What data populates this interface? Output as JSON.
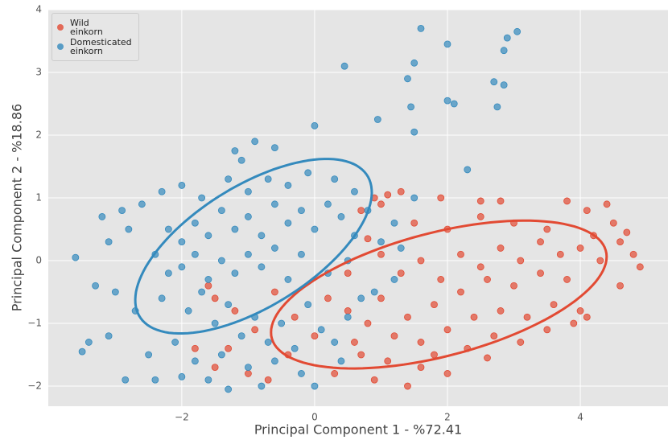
{
  "chart_data": {
    "type": "scatter",
    "xlabel": "Principal Component 1 - %72.41",
    "ylabel": "Principal Component 2 - %18.86",
    "xlim": [
      -4.01,
      5.32
    ],
    "ylim": [
      -2.32,
      4.0
    ],
    "xticks": [
      {
        "value": -2,
        "label": "−2"
      },
      0,
      2,
      4
    ],
    "yticks": [
      {
        "value": -2,
        "label": "−2"
      },
      {
        "value": -1,
        "label": "−1"
      },
      0,
      1,
      2,
      3,
      4
    ],
    "grid": true,
    "legend": "upper left",
    "series": [
      {
        "name": "Wild\neinkorn",
        "color": "#E24A33",
        "x": [
          0.5,
          0.8,
          1.0,
          1.2,
          1.4,
          1.6,
          1.8,
          2.0,
          2.2,
          2.4,
          2.6,
          2.8,
          3.0,
          3.2,
          3.4,
          3.6,
          3.8,
          4.0,
          1.0,
          1.3,
          1.6,
          1.9,
          2.2,
          2.5,
          2.8,
          3.1,
          3.4,
          3.7,
          4.0,
          4.3,
          4.6,
          4.8,
          4.9,
          4.7,
          4.5,
          4.2,
          1.5,
          2.0,
          2.5,
          3.0,
          3.5,
          4.1,
          4.4,
          3.8,
          2.8,
          2.5,
          1.9,
          1.3,
          1.0,
          4.6,
          1.8,
          2.3,
          2.7,
          3.1,
          3.5,
          3.9,
          4.1,
          2.0,
          1.6,
          1.1,
          0.7,
          1.4,
          0.9,
          0.6,
          2.6,
          0.2,
          0.0,
          -0.3,
          -0.6,
          -0.9,
          -1.2,
          -1.5,
          -1.3,
          -1.0,
          -0.7,
          -1.5,
          -1.8,
          -0.4,
          0.3,
          -1.6,
          0.9,
          1.1,
          0.7,
          0.8,
          0.5
        ],
        "values": [
          -0.8,
          -1.0,
          -0.6,
          -1.2,
          -0.9,
          -1.3,
          -0.7,
          -1.1,
          -0.5,
          -0.9,
          -0.3,
          -0.8,
          -0.4,
          -0.9,
          -0.2,
          -0.7,
          -0.3,
          -0.8,
          0.1,
          -0.2,
          0.0,
          -0.3,
          0.1,
          -0.1,
          0.2,
          0.0,
          0.3,
          0.1,
          0.2,
          0.0,
          0.3,
          0.1,
          -0.1,
          0.45,
          0.6,
          0.4,
          0.6,
          0.5,
          0.7,
          0.6,
          0.5,
          0.8,
          0.9,
          0.95,
          0.95,
          0.95,
          1.0,
          1.1,
          0.9,
          -0.4,
          -1.5,
          -1.4,
          -1.2,
          -1.3,
          -1.1,
          -1.0,
          -0.9,
          -1.8,
          -1.7,
          -1.6,
          -1.5,
          -2.0,
          -1.9,
          -1.3,
          -1.55,
          -0.6,
          -1.2,
          -0.9,
          -0.5,
          -1.1,
          -0.8,
          -0.6,
          -1.4,
          -1.8,
          -1.9,
          -1.7,
          -1.4,
          -1.5,
          -1.8,
          -0.4,
          1.0,
          1.05,
          0.8,
          0.35,
          -0.2
        ],
        "ellipse": {
          "cx": 1.87,
          "cy": -0.54,
          "rx": 2.61,
          "ry": 0.98,
          "angle": 15.7
        }
      },
      {
        "name": "Domesticated\neinkorn",
        "color": "#348ABD",
        "x": [
          -2.2,
          -2.0,
          -1.8,
          -1.6,
          -1.4,
          -1.2,
          -1.0,
          -0.8,
          -0.6,
          -0.4,
          -0.2,
          0.0,
          0.2,
          0.4,
          0.6,
          0.8,
          1.0,
          -2.4,
          -2.2,
          -2.0,
          -1.8,
          -1.6,
          -1.4,
          -1.2,
          -1.0,
          -0.8,
          -0.6,
          -0.4,
          -0.2,
          0.2,
          0.5,
          -2.6,
          -2.3,
          -2.0,
          -1.7,
          -1.3,
          -1.0,
          -0.7,
          -0.4,
          -0.1,
          0.3,
          0.6,
          -1.1,
          -0.9,
          -0.6,
          -1.2,
          -2.8,
          -3.1,
          -3.2,
          -2.9,
          -3.3,
          -3.0,
          -2.7,
          -3.1,
          -3.4,
          -2.3,
          -1.9,
          -1.7,
          -1.5,
          -1.3,
          -1.1,
          -0.9,
          -0.7,
          -0.5,
          -0.3,
          -0.1,
          0.1,
          0.3,
          0.5,
          0.7,
          -2.5,
          -2.1,
          -1.8,
          -1.6,
          -1.4,
          -1.0,
          -0.6,
          -0.2,
          0.4,
          0.0,
          -2.0,
          -2.4,
          1.2,
          1.3,
          1.5,
          1.2,
          0.9,
          1.6,
          2.0,
          1.5,
          2.9,
          3.05,
          2.85,
          2.7,
          2.85,
          1.4,
          1.45,
          2.0,
          2.1,
          2.75,
          0.45,
          1.5,
          0.95,
          0.0,
          2.3,
          -3.6,
          -3.5,
          -2.85,
          -1.3,
          -0.8
        ],
        "values": [
          0.5,
          0.3,
          0.6,
          0.4,
          0.8,
          0.5,
          0.7,
          0.4,
          0.9,
          0.6,
          0.8,
          0.5,
          0.9,
          0.7,
          0.4,
          0.8,
          0.3,
          0.1,
          -0.2,
          -0.1,
          0.1,
          -0.3,
          0.0,
          -0.2,
          0.1,
          -0.1,
          0.2,
          -0.3,
          0.1,
          -0.2,
          0.0,
          0.9,
          1.1,
          1.2,
          1.0,
          1.3,
          1.1,
          1.3,
          1.2,
          1.4,
          1.3,
          1.1,
          1.6,
          1.9,
          1.8,
          1.75,
          0.5,
          0.3,
          0.7,
          0.8,
          -0.4,
          -0.5,
          -0.8,
          -1.2,
          -1.3,
          -0.6,
          -0.8,
          -0.5,
          -1.0,
          -0.7,
          -1.2,
          -0.9,
          -1.3,
          -1.0,
          -1.4,
          -0.7,
          -1.1,
          -1.3,
          -0.9,
          -0.6,
          -1.5,
          -1.3,
          -1.6,
          -1.9,
          -1.5,
          -1.7,
          -1.6,
          -1.8,
          -1.6,
          -2.0,
          -1.85,
          -1.9,
          0.6,
          0.2,
          1.0,
          -0.3,
          -0.5,
          3.7,
          3.45,
          3.15,
          3.55,
          3.65,
          3.35,
          2.85,
          2.8,
          2.9,
          2.45,
          2.55,
          2.5,
          2.45,
          3.1,
          2.05,
          2.25,
          2.15,
          1.45,
          0.05,
          -1.45,
          -1.9,
          -2.05,
          -2.0
        ],
        "ellipse": {
          "cx": -0.92,
          "cy": 0.23,
          "rx": 2.05,
          "ry": 0.95,
          "angle": 34
        }
      }
    ]
  }
}
